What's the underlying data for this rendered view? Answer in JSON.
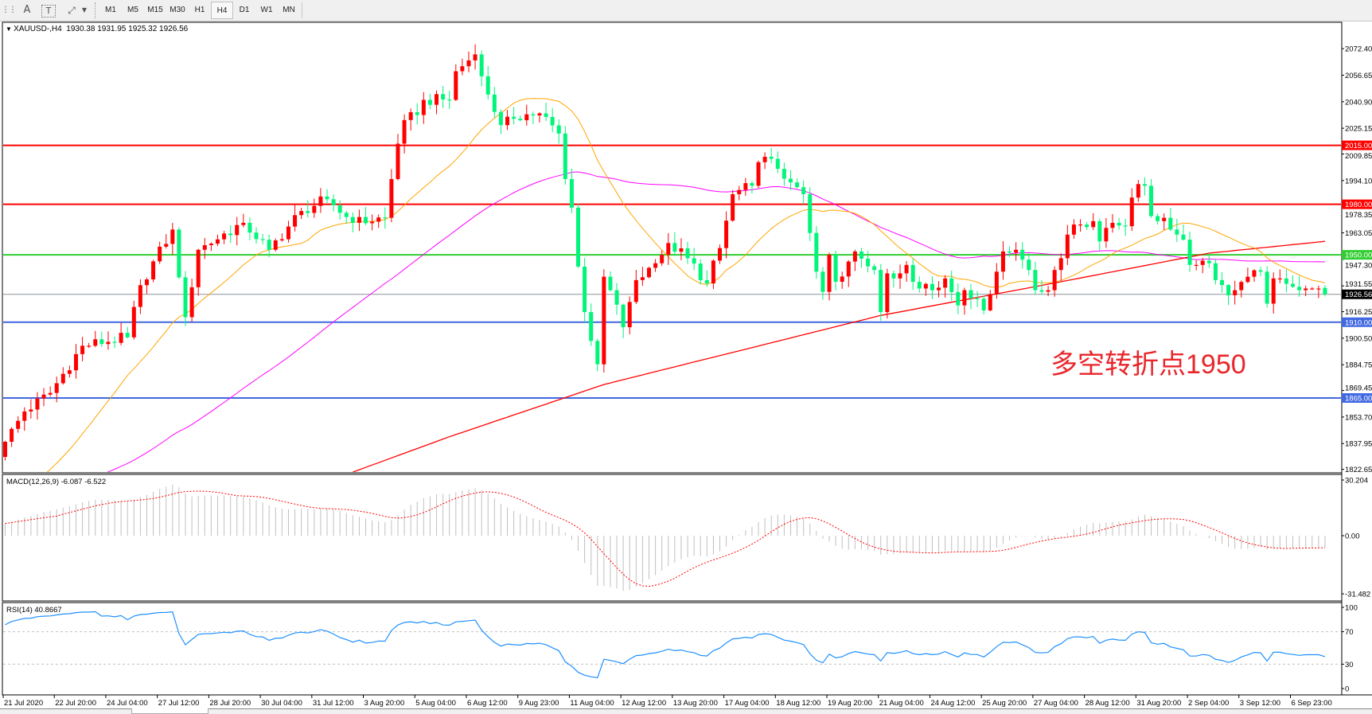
{
  "toolbar": {
    "tools": [
      {
        "icon": "grid-icon"
      },
      {
        "icon": "text-icon",
        "label": "A"
      },
      {
        "icon": "text-label-icon",
        "label": "T"
      },
      {
        "icon": "arrows-icon"
      },
      {
        "icon": "chevron-down-icon"
      }
    ],
    "timeframes": [
      "M1",
      "M5",
      "M15",
      "M30",
      "H1",
      "H4",
      "D1",
      "W1",
      "MN"
    ],
    "active_timeframe": "H4"
  },
  "chart": {
    "symbol_label": "XAUUSD-,H4",
    "ohlc_text": "1930.38 1931.95 1925.32 1926.56",
    "annotation": "多空转折点1950",
    "annotation_color": "#e8262b"
  },
  "chart_data": {
    "type": "candlestick",
    "symbol": "XAUUSD-",
    "timeframe": "H4",
    "last_bar": {
      "open": 1930.38,
      "high": 1931.95,
      "low": 1925.32,
      "close": 1926.56
    },
    "close_path": [
      [
        0,
        1839
      ],
      [
        3,
        1857
      ],
      [
        7,
        1868
      ],
      [
        12,
        1896
      ],
      [
        19,
        1901
      ],
      [
        21,
        1932
      ],
      [
        26,
        1965
      ],
      [
        28,
        1913
      ],
      [
        30,
        1953
      ],
      [
        37,
        1969
      ],
      [
        41,
        1953
      ],
      [
        46,
        1976
      ],
      [
        50,
        1983
      ],
      [
        54,
        1969
      ],
      [
        59,
        1972
      ],
      [
        60,
        1995
      ],
      [
        61,
        2016
      ],
      [
        62,
        2030
      ],
      [
        64,
        2033
      ],
      [
        65,
        2042
      ],
      [
        69,
        2042
      ],
      [
        70,
        2059
      ],
      [
        73,
        2069
      ],
      [
        74,
        2056
      ],
      [
        77,
        2027
      ],
      [
        78,
        2032
      ],
      [
        83,
        2034
      ],
      [
        86,
        2022
      ],
      [
        87,
        1995
      ],
      [
        88,
        1978
      ],
      [
        89,
        1943
      ],
      [
        90,
        1916
      ],
      [
        92,
        1885
      ],
      [
        93,
        1937
      ],
      [
        94,
        1929
      ],
      [
        96,
        1907
      ],
      [
        97,
        1922
      ],
      [
        98,
        1935
      ],
      [
        101,
        1945
      ],
      [
        103,
        1957
      ],
      [
        106,
        1948
      ],
      [
        109,
        1933
      ],
      [
        111,
        1954
      ],
      [
        113,
        1986
      ],
      [
        116,
        1991
      ],
      [
        117,
        2005
      ],
      [
        119,
        2007
      ],
      [
        122,
        1993
      ],
      [
        124,
        1986
      ],
      [
        125,
        1963
      ],
      [
        126,
        1940
      ],
      [
        127,
        1928
      ],
      [
        128,
        1950
      ],
      [
        129,
        1934
      ],
      [
        131,
        1946
      ],
      [
        132,
        1952
      ],
      [
        135,
        1941
      ],
      [
        136,
        1916
      ],
      [
        137,
        1939
      ],
      [
        138,
        1936
      ],
      [
        140,
        1944
      ],
      [
        142,
        1930
      ],
      [
        144,
        1929
      ],
      [
        146,
        1936
      ],
      [
        148,
        1920
      ],
      [
        149,
        1929
      ],
      [
        152,
        1917
      ],
      [
        154,
        1940
      ],
      [
        155,
        1952
      ],
      [
        157,
        1953
      ],
      [
        159,
        1941
      ],
      [
        160,
        1929
      ],
      [
        162,
        1929
      ],
      [
        163,
        1941
      ],
      [
        164,
        1948
      ],
      [
        165,
        1962
      ],
      [
        166,
        1968
      ],
      [
        167,
        1968
      ],
      [
        169,
        1970
      ],
      [
        170,
        1958
      ],
      [
        171,
        1966
      ],
      [
        172,
        1969
      ],
      [
        174,
        1967
      ],
      [
        175,
        1984
      ],
      [
        176,
        1992
      ],
      [
        177,
        1991
      ],
      [
        178,
        1973
      ],
      [
        179,
        1970
      ],
      [
        180,
        1972
      ],
      [
        181,
        1965
      ],
      [
        182,
        1962
      ],
      [
        183,
        1959
      ],
      [
        184,
        1944
      ],
      [
        185,
        1944
      ],
      [
        187,
        1945
      ],
      [
        188,
        1935
      ],
      [
        190,
        1926
      ],
      [
        191,
        1929
      ],
      [
        193,
        1937
      ],
      [
        195,
        1940
      ],
      [
        196,
        1921
      ],
      [
        197,
        1936
      ],
      [
        198,
        1936
      ],
      [
        200,
        1931
      ],
      [
        201,
        1929
      ],
      [
        202,
        1930
      ],
      [
        203,
        1930
      ],
      [
        204,
        1930
      ],
      [
        205,
        1926.56
      ]
    ],
    "ma_long_path": [
      [
        54,
        1821
      ],
      [
        69,
        1842
      ],
      [
        93,
        1873
      ],
      [
        136,
        1914
      ],
      [
        164,
        1934
      ],
      [
        187,
        1951
      ],
      [
        205,
        1958
      ]
    ],
    "price_axis": {
      "range": [
        1822.65,
        2072.4
      ],
      "ticks": [
        "2072.40",
        "2056.65",
        "2040.90",
        "2025.15",
        "2009.85",
        "1994.10",
        "1978.35",
        "1963.05",
        "1947.30",
        "1931.55",
        "1916.25",
        "1900.50",
        "1884.75",
        "1869.45",
        "1853.70",
        "1837.95",
        "1822.65"
      ]
    },
    "levels": [
      {
        "price": 2015,
        "label": "2015.00",
        "color": "#ff0000"
      },
      {
        "price": 1980,
        "label": "1980.00",
        "color": "#ff0000"
      },
      {
        "price": 1950,
        "label": "1950.00",
        "color": "#32cd32"
      },
      {
        "price": 1910,
        "label": "1910.00",
        "color": "#4169e1"
      },
      {
        "price": 1865,
        "label": "1865.00",
        "color": "#4169e1"
      }
    ],
    "current_price": {
      "value": 1926.56,
      "label": "1926.56",
      "color": "#000000",
      "line_color": "#8a949c"
    },
    "time_labels": [
      "21 Jul 2020",
      "22 Jul 20:00",
      "24 Jul 04:00",
      "27 Jul 12:00",
      "28 Jul 20:00",
      "30 Jul 04:00",
      "31 Jul 12:00",
      "3 Aug 20:00",
      "5 Aug 04:00",
      "6 Aug 12:00",
      "9 Aug 23:00",
      "11 Aug 04:00",
      "12 Aug 12:00",
      "13 Aug 20:00",
      "17 Aug 04:00",
      "18 Aug 12:00",
      "19 Aug 20:00",
      "21 Aug 04:00",
      "24 Aug 12:00",
      "25 Aug 20:00",
      "27 Aug 04:00",
      "28 Aug 12:00",
      "31 Aug 20:00",
      "2 Sep 04:00",
      "3 Sep 12:00",
      "6 Sep 23:00"
    ],
    "colors": {
      "up": "#ff0000",
      "down": "#00f57a",
      "ma_fast": "#ffa500",
      "ma_slow": "#ff00ff",
      "ma_long": "#ff0000"
    },
    "macd": {
      "label": "MACD(12,26,9) -6.087 -6.522",
      "range": [
        -31.482,
        30.204
      ],
      "axis": [
        {
          "value": 30.204,
          "label": "30.204"
        },
        {
          "value": 0,
          "label": "0.00"
        },
        {
          "value": -31.482,
          "label": "-31.482"
        }
      ],
      "histogram_color": "#c0c0c0",
      "signal_color": "#ff0000"
    },
    "rsi": {
      "label": "RSI(14) 40.8667",
      "range": [
        0,
        100
      ],
      "axis": [
        {
          "value": 100,
          "label": "100"
        },
        {
          "value": 70,
          "label": "70"
        },
        {
          "value": 30,
          "label": "30"
        },
        {
          "value": 0,
          "label": "0"
        }
      ],
      "levels": [
        70,
        30
      ],
      "color": "#1e90ff"
    }
  }
}
